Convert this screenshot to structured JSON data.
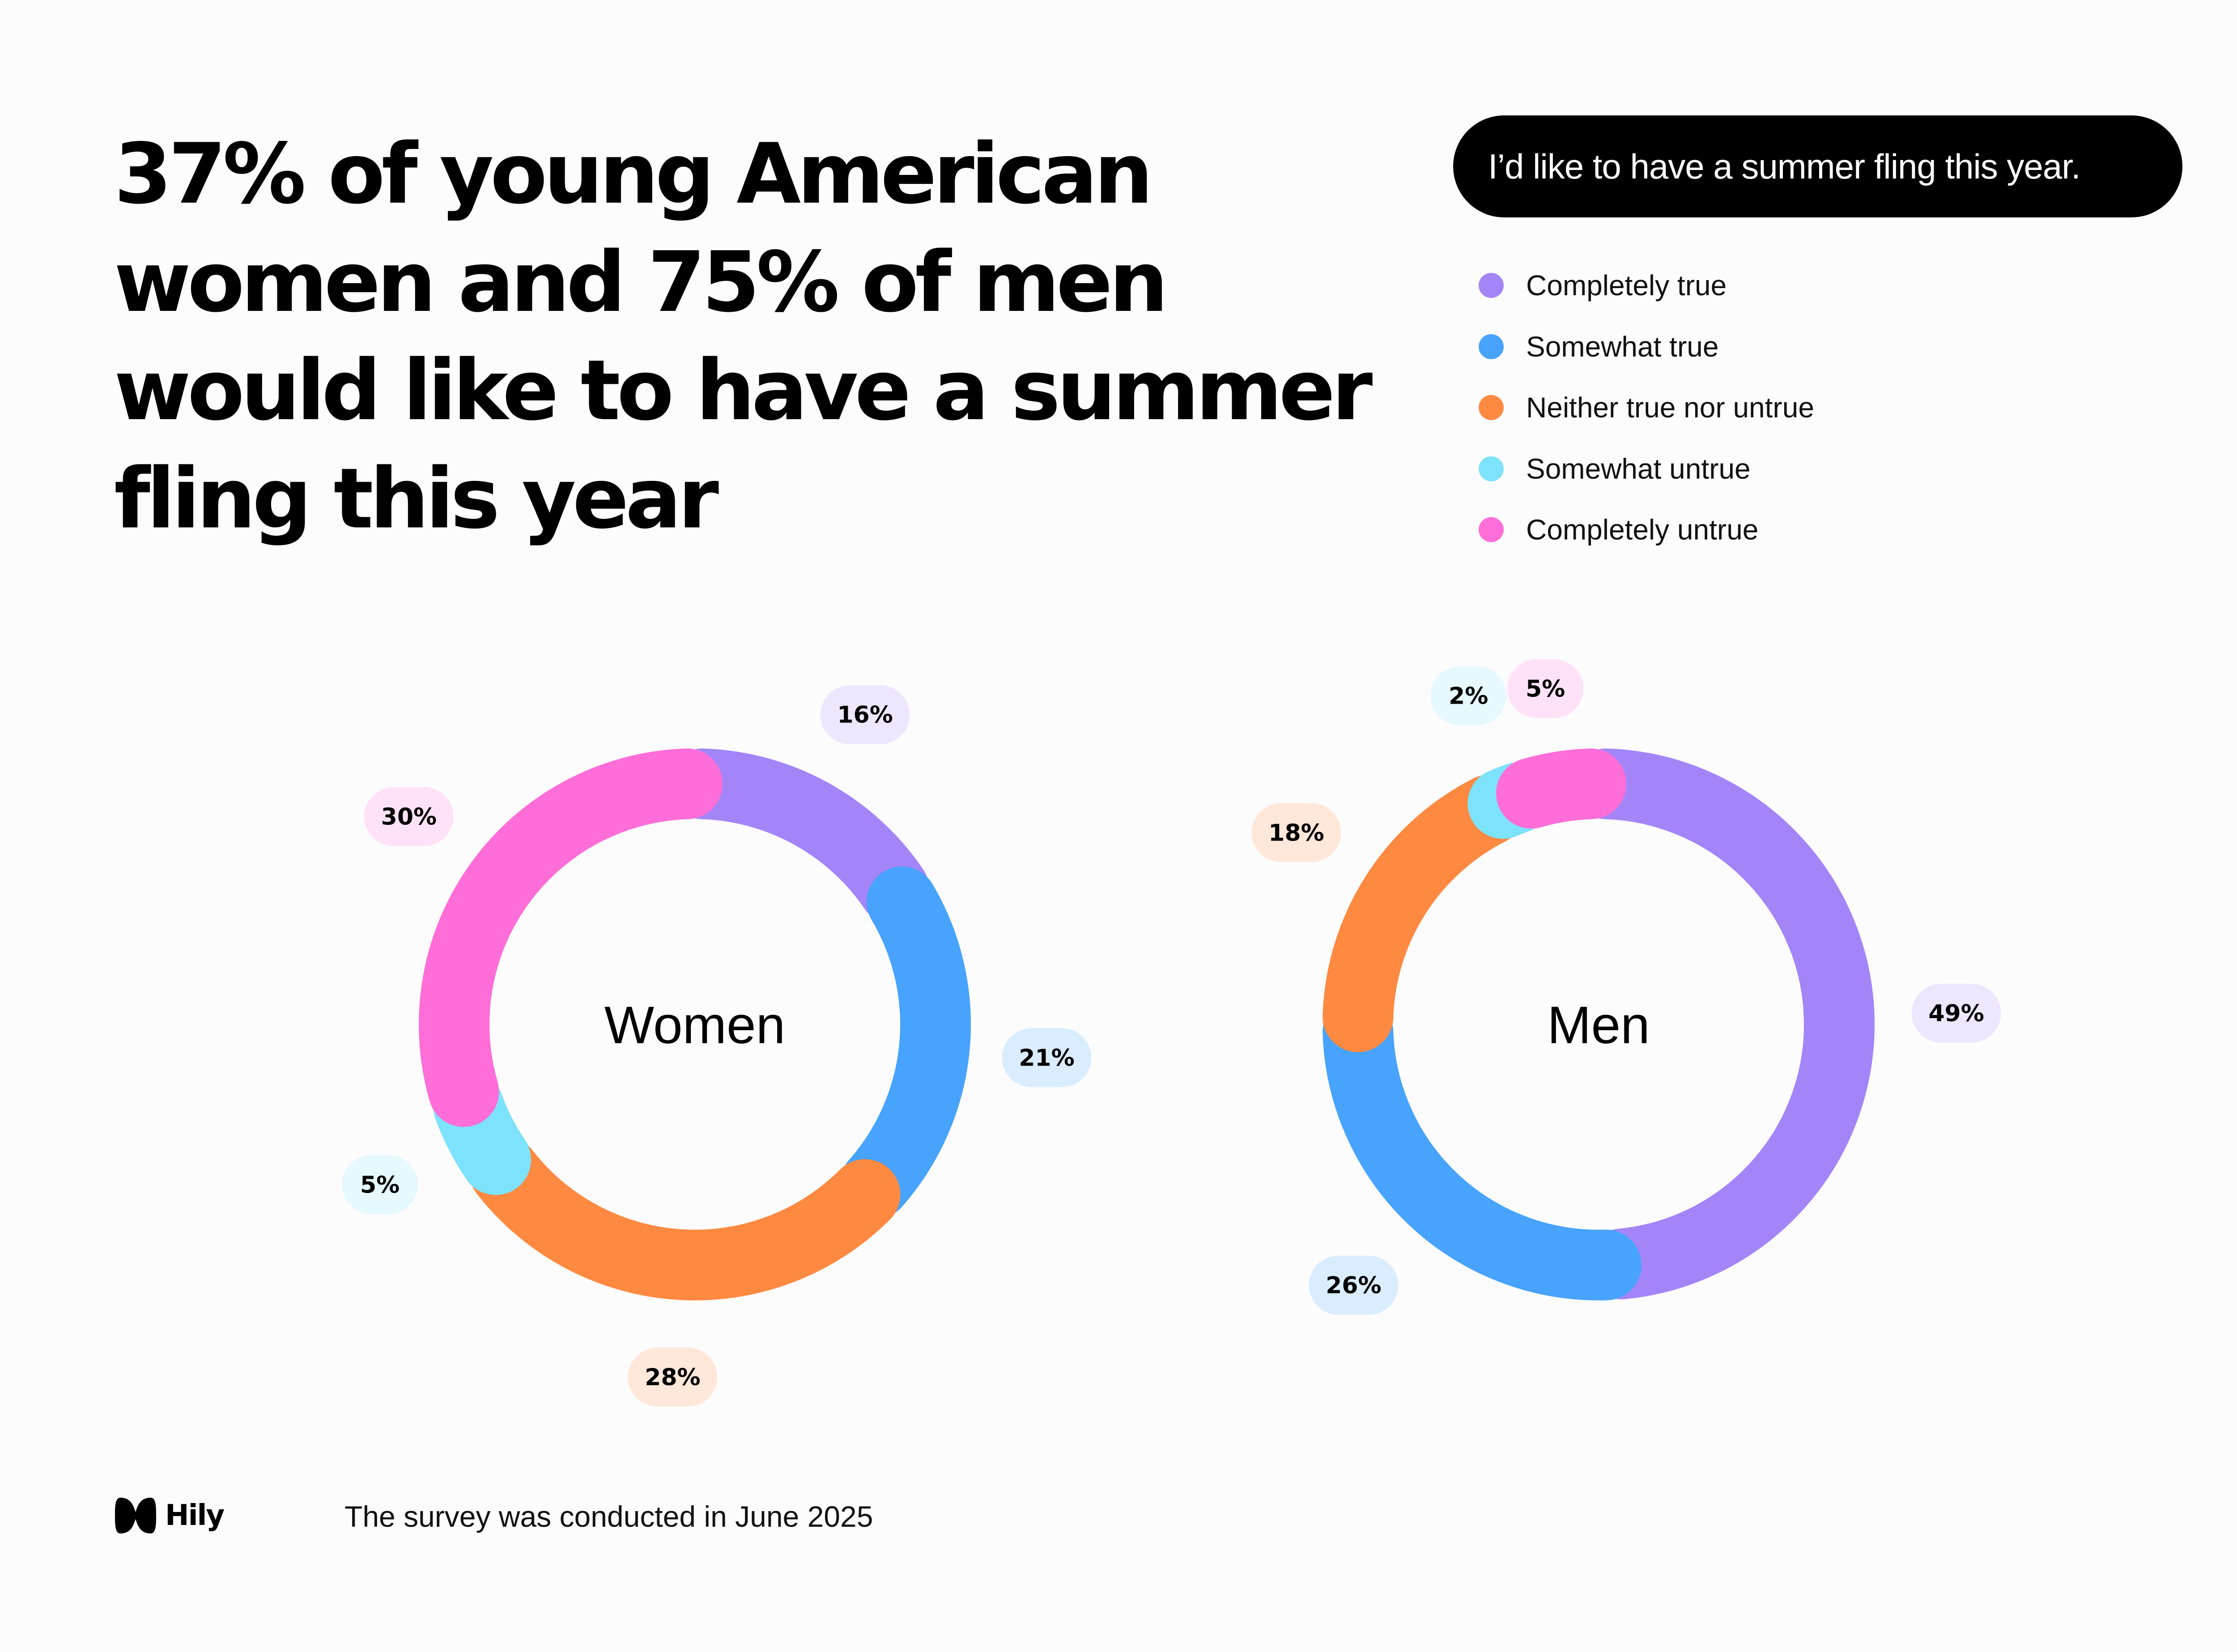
{
  "headline": "37% of young American women and 75% of men would like to have a summer fling this year",
  "question": "I’d like to have a summer fling this year.",
  "legend": [
    {
      "label": "Completely true",
      "color": "#a385f8"
    },
    {
      "label": "Somewhat true",
      "color": "#47a3fb"
    },
    {
      "label": "Neither true nor untrue",
      "color": "#fe8940"
    },
    {
      "label": "Somewhat untrue",
      "color": "#7de2fb"
    },
    {
      "label": "Completely untrue",
      "color": "#fe6dd8"
    }
  ],
  "chart_data": [
    {
      "type": "pie",
      "title": "Women",
      "categories": [
        "Completely true",
        "Somewhat true",
        "Neither true nor untrue",
        "Somewhat untrue",
        "Completely untrue"
      ],
      "values": [
        16,
        21,
        28,
        5,
        30
      ],
      "labels": [
        "16%",
        "21%",
        "28%",
        "5%",
        "30%"
      ]
    },
    {
      "type": "pie",
      "title": "Men",
      "categories": [
        "Completely true",
        "Somewhat true",
        "Neither true nor untrue",
        "Somewhat untrue",
        "Completely untrue"
      ],
      "values": [
        49,
        26,
        18,
        2,
        5
      ],
      "labels": [
        "49%",
        "26%",
        "18%",
        "2%",
        "5%"
      ]
    }
  ],
  "footer": {
    "brand": "Hily",
    "note": "The survey was conducted in June 2025"
  }
}
